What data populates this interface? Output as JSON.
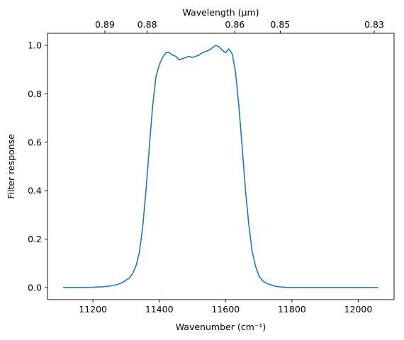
{
  "chart_data": {
    "type": "line",
    "xlabel": "Wavenumber (cm⁻¹)",
    "ylabel": "Filter response",
    "x2label": "Wavelength (μm)",
    "xlim": [
      11063,
      12108
    ],
    "ylim": [
      -0.05,
      1.05
    ],
    "grid": false,
    "line_color": "#1f77b4",
    "x_ticks": [
      {
        "value": 11200,
        "label": "11200"
      },
      {
        "value": 11400,
        "label": "11400"
      },
      {
        "value": 11600,
        "label": "11600"
      },
      {
        "value": 11800,
        "label": "11800"
      },
      {
        "value": 12000,
        "label": "12000"
      }
    ],
    "y_ticks": [
      {
        "value": 0.0,
        "label": "0.0"
      },
      {
        "value": 0.2,
        "label": "0.2"
      },
      {
        "value": 0.4,
        "label": "0.4"
      },
      {
        "value": 0.6,
        "label": "0.6"
      },
      {
        "value": 0.8,
        "label": "0.8"
      },
      {
        "value": 1.0,
        "label": "1.0"
      }
    ],
    "x2_ticks": [
      {
        "value": 0.89,
        "label": "0.89"
      },
      {
        "value": 0.88,
        "label": "0.88"
      },
      {
        "value": 0.86,
        "label": "0.86"
      },
      {
        "value": 0.85,
        "label": "0.85"
      },
      {
        "value": 0.83,
        "label": "0.83"
      }
    ],
    "series": [
      {
        "x": [
          11110,
          11150,
          11200,
          11230,
          11250,
          11270,
          11285,
          11300,
          11310,
          11320,
          11330,
          11340,
          11350,
          11360,
          11370,
          11380,
          11390,
          11400,
          11410,
          11420,
          11430,
          11440,
          11450,
          11460,
          11470,
          11480,
          11490,
          11500,
          11510,
          11520,
          11530,
          11540,
          11550,
          11560,
          11570,
          11580,
          11590,
          11600,
          11610,
          11620,
          11630,
          11640,
          11650,
          11660,
          11670,
          11680,
          11690,
          11700,
          11710,
          11720,
          11730,
          11740,
          11750,
          11760,
          11770,
          11780,
          11790,
          11800,
          11810,
          11820,
          11830,
          11840,
          11860,
          11880,
          11900,
          11950,
          12000,
          12060
        ],
        "y": [
          0.0,
          0.0,
          0.001,
          0.003,
          0.006,
          0.011,
          0.018,
          0.03,
          0.04,
          0.058,
          0.09,
          0.145,
          0.25,
          0.4,
          0.58,
          0.75,
          0.87,
          0.92,
          0.95,
          0.97,
          0.97,
          0.96,
          0.955,
          0.94,
          0.945,
          0.95,
          0.955,
          0.95,
          0.955,
          0.96,
          0.97,
          0.975,
          0.98,
          0.99,
          1.0,
          0.995,
          0.98,
          0.97,
          0.985,
          0.965,
          0.89,
          0.75,
          0.58,
          0.4,
          0.26,
          0.15,
          0.09,
          0.05,
          0.03,
          0.02,
          0.014,
          0.01,
          0.005,
          0.003,
          0.002,
          0.001,
          0.0,
          0.0,
          0.0,
          0.0,
          0.0,
          0.0,
          0.0,
          0.0,
          0.0,
          0.0,
          0.0,
          0.0
        ]
      }
    ]
  }
}
